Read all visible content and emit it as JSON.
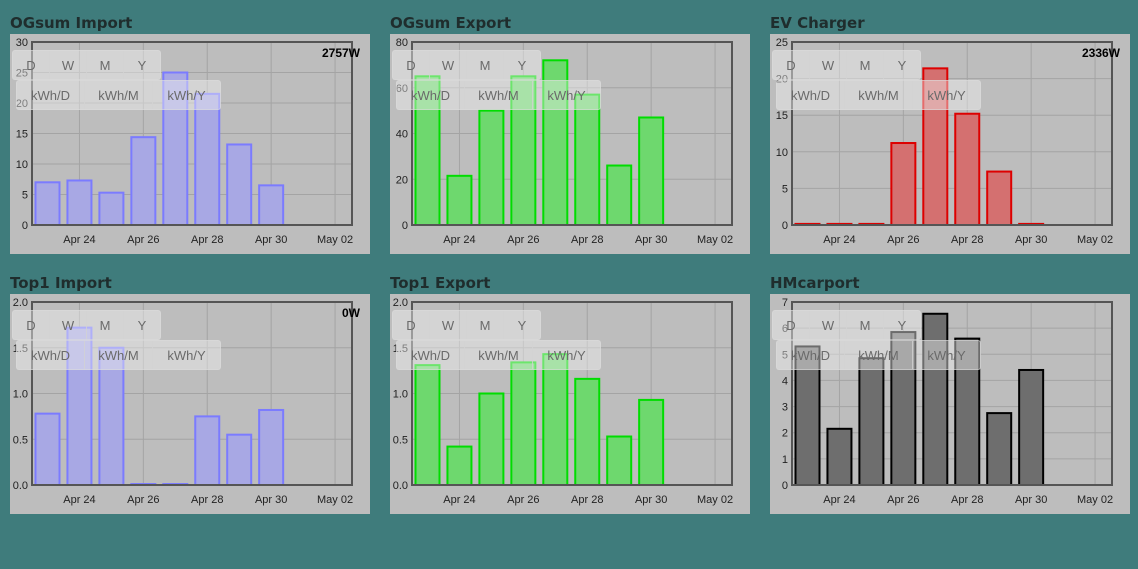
{
  "buttons": {
    "period": [
      "D",
      "W",
      "M",
      "Y"
    ],
    "unit": [
      "kWh/D",
      "kWh/M",
      "kWh/Y"
    ]
  },
  "x_ticks": [
    "Apr 24",
    "Apr 26",
    "Apr 28",
    "Apr 30",
    "May 02"
  ],
  "panels": [
    {
      "title": "OGsum Import",
      "power": "2757W",
      "color": "#7b7bff",
      "fill": "#a8a8e4",
      "chart_data": {
        "type": "bar",
        "x": [
          "Apr 23",
          "Apr 24",
          "Apr 25",
          "Apr 26",
          "Apr 27",
          "Apr 28",
          "Apr 29",
          "Apr 30"
        ],
        "values": [
          7,
          7.3,
          5.3,
          14.4,
          25,
          21.5,
          13.2,
          6.5
        ],
        "yticks": [
          "0",
          "5",
          "10",
          "15",
          "20",
          "25",
          "30"
        ],
        "ylim": [
          0,
          30
        ]
      }
    },
    {
      "title": "OGsum Export",
      "power": "",
      "color": "#00dd00",
      "fill": "#6ed86e",
      "chart_data": {
        "type": "bar",
        "x": [
          "Apr 23",
          "Apr 24",
          "Apr 25",
          "Apr 26",
          "Apr 27",
          "Apr 28",
          "Apr 29",
          "Apr 30"
        ],
        "values": [
          65,
          21.5,
          50,
          65,
          72,
          57,
          26,
          47
        ],
        "yticks": [
          "0",
          "20",
          "40",
          "60",
          "80"
        ],
        "ylim": [
          0,
          80
        ]
      }
    },
    {
      "title": "EV Charger",
      "power": "2336W",
      "color": "#dd0000",
      "fill": "#d47070",
      "chart_data": {
        "type": "bar",
        "x": [
          "Apr 23",
          "Apr 24",
          "Apr 25",
          "Apr 26",
          "Apr 27",
          "Apr 28",
          "Apr 29",
          "Apr 30"
        ],
        "values": [
          0.15,
          0.15,
          0.15,
          11.2,
          21.4,
          15.2,
          7.3,
          0.15
        ],
        "yticks": [
          "0",
          "5",
          "10",
          "15",
          "20",
          "25"
        ],
        "ylim": [
          0,
          25
        ]
      }
    },
    {
      "title": "Top1 Import",
      "power": "0W",
      "color": "#7b7bff",
      "fill": "#a8a8e4",
      "chart_data": {
        "type": "bar",
        "x": [
          "Apr 23",
          "Apr 24",
          "Apr 25",
          "Apr 26",
          "Apr 27",
          "Apr 28",
          "Apr 29",
          "Apr 30"
        ],
        "values": [
          0.78,
          1.72,
          1.5,
          0.01,
          0.01,
          0.75,
          0.55,
          0.82
        ],
        "yticks": [
          "0.0",
          "0.5",
          "1.0",
          "1.5",
          "2.0"
        ],
        "ylim": [
          0,
          2
        ]
      }
    },
    {
      "title": "Top1 Export",
      "power": "",
      "color": "#00dd00",
      "fill": "#6ed86e",
      "chart_data": {
        "type": "bar",
        "x": [
          "Apr 23",
          "Apr 24",
          "Apr 25",
          "Apr 26",
          "Apr 27",
          "Apr 28",
          "Apr 29",
          "Apr 30"
        ],
        "values": [
          1.31,
          0.42,
          1.0,
          1.34,
          1.43,
          1.16,
          0.53,
          0.93
        ],
        "yticks": [
          "0.0",
          "0.5",
          "1.0",
          "1.5",
          "2.0"
        ],
        "ylim": [
          0,
          2
        ]
      }
    },
    {
      "title": "HMcarport",
      "power": "",
      "color": "#000000",
      "fill": "#6e6e6e",
      "chart_data": {
        "type": "bar",
        "x": [
          "Apr 23",
          "Apr 24",
          "Apr 25",
          "Apr 26",
          "Apr 27",
          "Apr 28",
          "Apr 29",
          "Apr 30"
        ],
        "values": [
          5.3,
          2.15,
          4.85,
          5.85,
          6.55,
          5.6,
          2.75,
          4.4
        ],
        "yticks": [
          "0",
          "1",
          "2",
          "3",
          "4",
          "5",
          "6",
          "7"
        ],
        "ylim": [
          0,
          7
        ]
      }
    }
  ]
}
